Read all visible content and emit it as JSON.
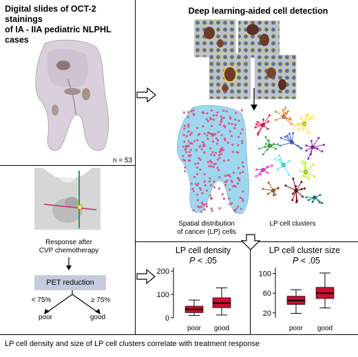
{
  "panel_a": {
    "title_line1": "Digital slides of OCT-2 stainings",
    "title_line2": "of IA - IIA pediatric NLPHL cases",
    "n_label": "n = 53"
  },
  "panel_b": {
    "title": "Deep learning-aided cell detection",
    "caption_spatial_line1": "Spatial distribution",
    "caption_spatial_line2": "of cancer (LP) cells",
    "caption_clusters": "LP cell clusters"
  },
  "panel_c": {
    "response_line1": "Response after",
    "response_line2": "CVP chemotherapy",
    "box_label": "PET reduction",
    "left_threshold": "< 75%",
    "right_threshold": "≥ 75%",
    "left_outcome": "poor",
    "right_outcome": "good"
  },
  "footer": {
    "text": "LP cell density and size of LP cell clusters correlate with treatment response"
  },
  "colors": {
    "box_fill": "#c8102e",
    "pet_box": "#c7cbe0",
    "cell_pink": "#d65c8c",
    "tissue_blue": "#8fd0e8"
  },
  "chart_data": [
    {
      "type": "box",
      "title": "LP cell density",
      "pvalue": "P < .05",
      "p_letter": "P",
      "p_rest": " < .05",
      "categories": [
        "poor",
        "good"
      ],
      "yticks": [
        "0",
        "100",
        "200"
      ],
      "ylim": [
        0,
        215
      ],
      "boxes": [
        {
          "name": "poor",
          "whisker_low": 10,
          "q1": 22,
          "median": 36,
          "q3": 50,
          "whisker_high": 76
        },
        {
          "name": "good",
          "whisker_low": 12,
          "q1": 43,
          "median": 63,
          "q3": 86,
          "whisker_high": 128
        }
      ]
    },
    {
      "type": "box",
      "title": "LP cell cluster size",
      "pvalue": "P < .05",
      "p_letter": "P",
      "p_rest": " < .05",
      "categories": [
        "poor",
        "good"
      ],
      "yticks": [
        "20",
        "60",
        "100"
      ],
      "ylim": [
        10,
        112
      ],
      "boxes": [
        {
          "name": "poor",
          "whisker_low": 19,
          "q1": 37,
          "median": 45,
          "q3": 54,
          "whisker_high": 67
        },
        {
          "name": "good",
          "whisker_low": 30,
          "q1": 49,
          "median": 60,
          "q3": 72,
          "whisker_high": 101
        }
      ]
    }
  ]
}
